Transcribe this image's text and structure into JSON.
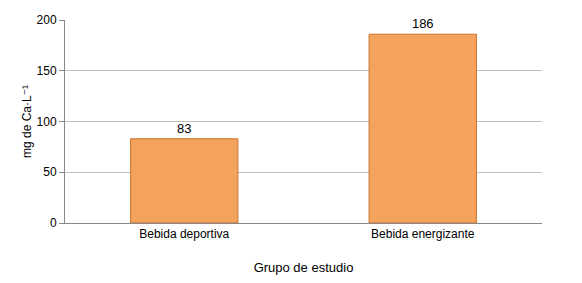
{
  "chart_data": {
    "type": "bar",
    "categories": [
      "Bebida deportiva",
      "Bebida energizante"
    ],
    "values": [
      83,
      186
    ],
    "color": "#f4a35c",
    "x_label": "Grupo de estudio",
    "y_label": "mg de Ca·L⁻¹",
    "ylim": [
      0,
      200
    ],
    "yticks": [
      0,
      50,
      100,
      150,
      200
    ],
    "grid": true,
    "data_labels": true
  }
}
